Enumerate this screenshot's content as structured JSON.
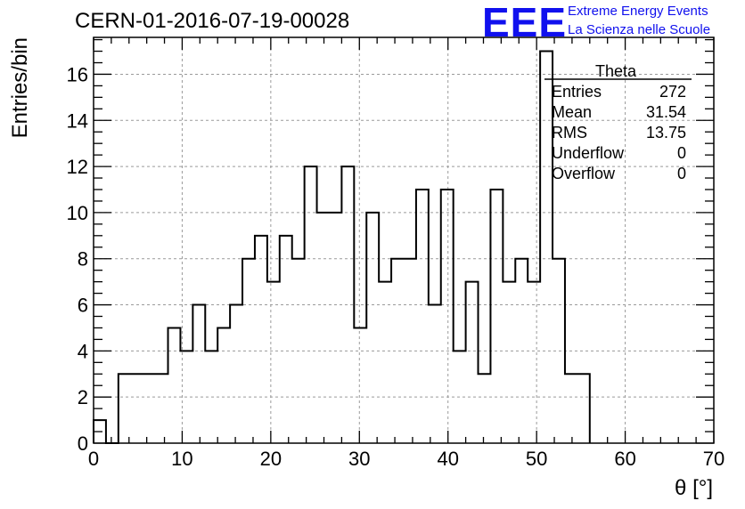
{
  "header": {
    "run_title": "CERN-01-2016-07-19-00028",
    "logo_text": "EEE",
    "logo_line1": "Extreme Energy Events",
    "logo_line2": "La Scienza nelle Scuole",
    "logo_color": "#1010ee"
  },
  "stats_box": {
    "title": "Theta",
    "rows": [
      {
        "label": "Entries",
        "value": "272"
      },
      {
        "label": "Mean",
        "value": "31.54"
      },
      {
        "label": "RMS",
        "value": "13.75"
      },
      {
        "label": "Underflow",
        "value": "0"
      },
      {
        "label": "Overflow",
        "value": "0"
      }
    ]
  },
  "chart_data": {
    "type": "bar",
    "histogram": true,
    "title": "CERN-01-2016-07-19-00028",
    "xlabel": "θ [°]",
    "ylabel": "Entries/bin",
    "xlim": [
      0,
      70
    ],
    "ylim": [
      0,
      17.6
    ],
    "bin_width": 1.4,
    "bin_edges_start": 0,
    "values": [
      1,
      0,
      3,
      3,
      3,
      3,
      5,
      4,
      6,
      4,
      5,
      6,
      8,
      9,
      7,
      9,
      8,
      12,
      10,
      10,
      12,
      5,
      10,
      7,
      8,
      8,
      11,
      6,
      11,
      4,
      7,
      3,
      11,
      7,
      8,
      7,
      17,
      8,
      3,
      3
    ],
    "x_ticks": [
      0,
      10,
      20,
      30,
      40,
      50,
      60,
      70
    ],
    "y_ticks": [
      0,
      2,
      4,
      6,
      8,
      10,
      12,
      14,
      16
    ],
    "grid": true,
    "line_color": "#000000"
  }
}
